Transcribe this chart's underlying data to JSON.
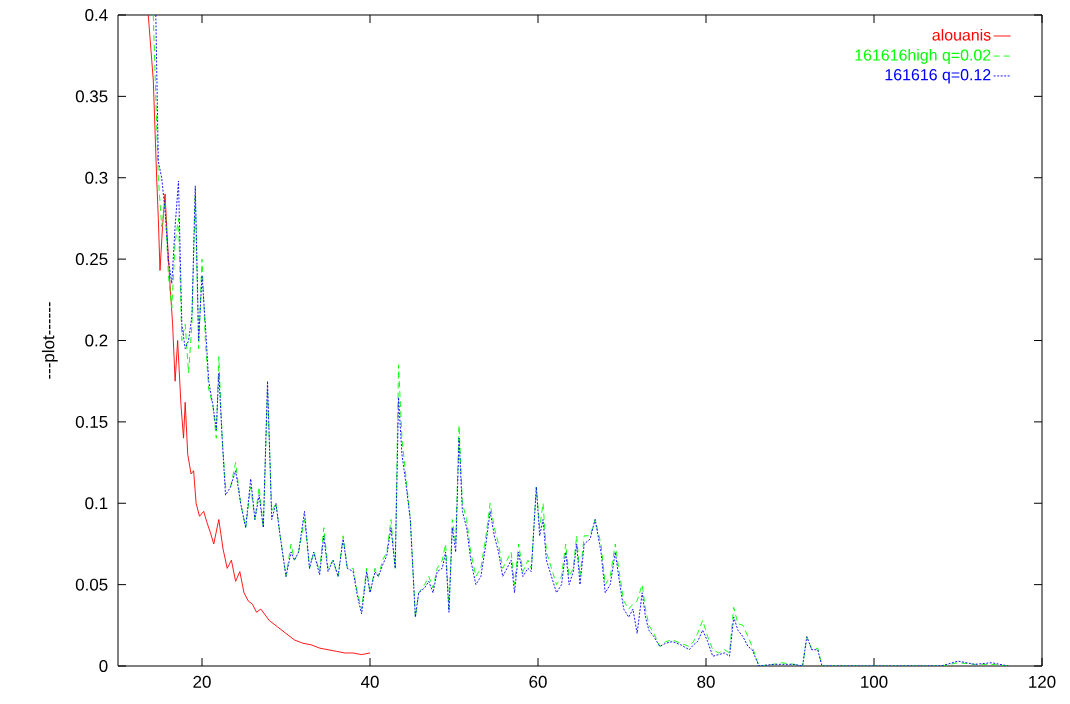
{
  "chart_data": {
    "type": "line",
    "ylabel": "---plot------",
    "xlim": [
      10,
      120
    ],
    "ylim": [
      0,
      0.4
    ],
    "xticks": [
      20,
      40,
      60,
      80,
      100,
      120
    ],
    "yticks": [
      0,
      0.05,
      0.1,
      0.15,
      0.2,
      0.25,
      0.3,
      0.35,
      0.4
    ],
    "legend": "top right",
    "grid": false,
    "marker": "none",
    "series": [
      {
        "name": "alouanis",
        "color": "#ff0000",
        "line_style": "solid",
        "x": [
          13.6,
          14.2,
          14.6,
          14.8,
          15.0,
          15.3,
          15.6,
          16.0,
          16.5,
          16.8,
          17.1,
          17.5,
          17.8,
          18.0,
          18.3,
          18.7,
          19.0,
          19.3,
          19.7,
          20.2,
          20.6,
          21.0,
          21.4,
          22.0,
          22.5,
          23.0,
          23.5,
          24.0,
          24.5,
          25.0,
          25.5,
          26,
          26.5,
          27,
          28,
          29,
          30,
          31,
          32,
          33,
          34,
          35,
          36,
          37,
          38,
          39,
          40
        ],
        "values": [
          0.4,
          0.36,
          0.3,
          0.275,
          0.243,
          0.27,
          0.29,
          0.25,
          0.21,
          0.175,
          0.2,
          0.16,
          0.14,
          0.162,
          0.13,
          0.118,
          0.12,
          0.1,
          0.092,
          0.095,
          0.088,
          0.082,
          0.075,
          0.09,
          0.072,
          0.06,
          0.065,
          0.052,
          0.058,
          0.045,
          0.04,
          0.038,
          0.033,
          0.035,
          0.028,
          0.024,
          0.02,
          0.016,
          0.014,
          0.013,
          0.011,
          0.01,
          0.009,
          0.008,
          0.008,
          0.007,
          0.008
        ]
      },
      {
        "name": "161616high q=0.02",
        "color": "#00ff00",
        "line_style": "dashed",
        "x": [
          14.2,
          14.5,
          14.8,
          15.2,
          15.6,
          16.0,
          16.4,
          16.8,
          17.2,
          17.6,
          18.0,
          18.4,
          18.8,
          19.2,
          19.6,
          20.0,
          20.4,
          20.8,
          21.3,
          21.7,
          22.0,
          22.4,
          22.8,
          23.4,
          24.0,
          24.6,
          25.2,
          25.8,
          26.3,
          26.8,
          27.3,
          27.8,
          28.3,
          28.8,
          29.3,
          30.0,
          30.6,
          31.0,
          31.5,
          32.2,
          32.8,
          33.3,
          34,
          34.5,
          35,
          35.6,
          36.2,
          36.8,
          37.3,
          38,
          38.5,
          39,
          39.6,
          40,
          40.6,
          41,
          41.5,
          42,
          42.5,
          43,
          43.4,
          43.8,
          44.2,
          44.8,
          45.4,
          45.8,
          46.5,
          47,
          47.5,
          48,
          48.6,
          49,
          49.4,
          49.8,
          50.2,
          50.6,
          51,
          51.5,
          52,
          52.6,
          53.2,
          53.8,
          54.3,
          54.8,
          55.3,
          55.8,
          56.3,
          56.8,
          57.2,
          57.7,
          58.2,
          58.8,
          59.2,
          59.8,
          60.2,
          60.6,
          61,
          61.6,
          62.2,
          62.8,
          63.3,
          63.7,
          64.2,
          64.6,
          65,
          65.5,
          66.2,
          66.8,
          67.5,
          68,
          68.6,
          69.2,
          69.6,
          70.2,
          70.8,
          71.3,
          71.8,
          72.4,
          72.8,
          73.2,
          73.8,
          74.5,
          75.2,
          76,
          77,
          78,
          78.5,
          79,
          79.6,
          80.2,
          80.8,
          81.5,
          82.2,
          82.8,
          83.3,
          83.8,
          84.4,
          85,
          85.5,
          86.3,
          88,
          89,
          90.5,
          91.5,
          92,
          92.6,
          93.3,
          93.8,
          100,
          105,
          108,
          110,
          112,
          114,
          116
        ],
        "values": [
          0.4,
          0.35,
          0.3,
          0.27,
          0.285,
          0.24,
          0.22,
          0.26,
          0.275,
          0.2,
          0.21,
          0.18,
          0.21,
          0.29,
          0.195,
          0.25,
          0.2,
          0.17,
          0.16,
          0.14,
          0.19,
          0.14,
          0.11,
          0.11,
          0.125,
          0.1,
          0.085,
          0.11,
          0.09,
          0.11,
          0.085,
          0.17,
          0.095,
          0.1,
          0.08,
          0.055,
          0.075,
          0.065,
          0.07,
          0.09,
          0.06,
          0.07,
          0.058,
          0.085,
          0.06,
          0.065,
          0.055,
          0.08,
          0.06,
          0.06,
          0.045,
          0.035,
          0.06,
          0.045,
          0.06,
          0.055,
          0.065,
          0.07,
          0.09,
          0.06,
          0.185,
          0.14,
          0.12,
          0.09,
          0.03,
          0.045,
          0.05,
          0.055,
          0.048,
          0.06,
          0.065,
          0.075,
          0.035,
          0.09,
          0.075,
          0.148,
          0.1,
          0.09,
          0.07,
          0.055,
          0.06,
          0.08,
          0.1,
          0.085,
          0.075,
          0.06,
          0.065,
          0.07,
          0.05,
          0.075,
          0.058,
          0.065,
          0.06,
          0.11,
          0.085,
          0.1,
          0.07,
          0.06,
          0.05,
          0.055,
          0.075,
          0.055,
          0.06,
          0.08,
          0.055,
          0.08,
          0.08,
          0.09,
          0.075,
          0.05,
          0.055,
          0.075,
          0.06,
          0.04,
          0.035,
          0.038,
          0.04,
          0.05,
          0.035,
          0.025,
          0.02,
          0.012,
          0.015,
          0.016,
          0.014,
          0.012,
          0.015,
          0.02,
          0.028,
          0.018,
          0.01,
          0.008,
          0.01,
          0.008,
          0.036,
          0.026,
          0.025,
          0.018,
          0.012,
          0.0,
          0.001,
          0.002,
          0.001,
          0.0,
          0.018,
          0.01,
          0.011,
          0.0,
          0.0,
          0.0,
          0.0,
          0.002,
          0.001,
          0.001,
          0.0
        ]
      },
      {
        "name": "161616 q=0.12",
        "color": "#0000ff",
        "line_style": "dotted",
        "x": [
          14.5,
          14.8,
          15.2,
          15.6,
          16.0,
          16.4,
          16.8,
          17.2,
          17.6,
          18.0,
          18.4,
          18.8,
          19.2,
          19.6,
          20.0,
          20.4,
          20.8,
          21.3,
          21.7,
          22.0,
          22.4,
          22.8,
          23.4,
          24.0,
          24.6,
          25.2,
          25.8,
          26.3,
          26.8,
          27.3,
          27.8,
          28.3,
          28.8,
          29.3,
          30.0,
          30.6,
          31.0,
          31.5,
          32.2,
          32.8,
          33.3,
          34,
          34.5,
          35,
          35.6,
          36.2,
          36.8,
          37.3,
          38,
          38.5,
          39,
          39.6,
          40,
          40.6,
          41,
          41.5,
          42,
          42.5,
          43,
          43.4,
          43.8,
          44.2,
          44.8,
          45.4,
          45.8,
          46.5,
          47,
          47.5,
          48,
          48.6,
          49,
          49.4,
          49.8,
          50.2,
          50.6,
          51,
          51.5,
          52,
          52.6,
          53.2,
          53.8,
          54.3,
          54.8,
          55.3,
          55.8,
          56.3,
          56.8,
          57.2,
          57.7,
          58.2,
          58.8,
          59.2,
          59.8,
          60.2,
          60.6,
          61,
          61.6,
          62.2,
          62.8,
          63.3,
          63.7,
          64.2,
          64.6,
          65,
          65.5,
          66.2,
          66.8,
          67.5,
          68,
          68.6,
          69.2,
          69.6,
          70.2,
          70.8,
          71.3,
          71.8,
          72.4,
          72.8,
          73.2,
          73.8,
          74.5,
          75.2,
          76,
          77,
          78,
          78.5,
          79,
          79.6,
          80.2,
          80.8,
          81.5,
          82.2,
          82.8,
          83.3,
          83.8,
          84.4,
          85,
          85.5,
          86.3,
          88,
          89,
          90.5,
          91.5,
          92,
          92.6,
          93.3,
          93.8,
          108,
          110,
          112,
          114,
          116
        ],
        "values": [
          0.4,
          0.31,
          0.3,
          0.28,
          0.25,
          0.235,
          0.27,
          0.298,
          0.21,
          0.195,
          0.2,
          0.215,
          0.295,
          0.2,
          0.24,
          0.21,
          0.175,
          0.16,
          0.145,
          0.18,
          0.14,
          0.105,
          0.11,
          0.12,
          0.1,
          0.085,
          0.115,
          0.09,
          0.105,
          0.085,
          0.175,
          0.09,
          0.1,
          0.08,
          0.055,
          0.07,
          0.065,
          0.07,
          0.095,
          0.06,
          0.07,
          0.056,
          0.08,
          0.058,
          0.065,
          0.055,
          0.078,
          0.06,
          0.058,
          0.043,
          0.032,
          0.058,
          0.045,
          0.058,
          0.055,
          0.062,
          0.068,
          0.085,
          0.06,
          0.165,
          0.13,
          0.115,
          0.09,
          0.03,
          0.045,
          0.048,
          0.052,
          0.045,
          0.058,
          0.06,
          0.07,
          0.033,
          0.085,
          0.07,
          0.14,
          0.095,
          0.085,
          0.065,
          0.05,
          0.055,
          0.075,
          0.095,
          0.08,
          0.07,
          0.055,
          0.06,
          0.065,
          0.045,
          0.07,
          0.055,
          0.06,
          0.058,
          0.11,
          0.08,
          0.09,
          0.065,
          0.055,
          0.045,
          0.05,
          0.07,
          0.05,
          0.058,
          0.075,
          0.05,
          0.075,
          0.078,
          0.09,
          0.07,
          0.045,
          0.05,
          0.07,
          0.055,
          0.035,
          0.03,
          0.035,
          0.02,
          0.045,
          0.03,
          0.022,
          0.018,
          0.012,
          0.014,
          0.015,
          0.013,
          0.01,
          0.013,
          0.015,
          0.022,
          0.015,
          0.006,
          0.007,
          0.008,
          0.006,
          0.03,
          0.022,
          0.018,
          0.012,
          0.01,
          0.0,
          0.001,
          0.001,
          0.001,
          0.0,
          0.018,
          0.01,
          0.01,
          0.0,
          0.0,
          0.003,
          0.001,
          0.002,
          0.0
        ]
      }
    ]
  }
}
